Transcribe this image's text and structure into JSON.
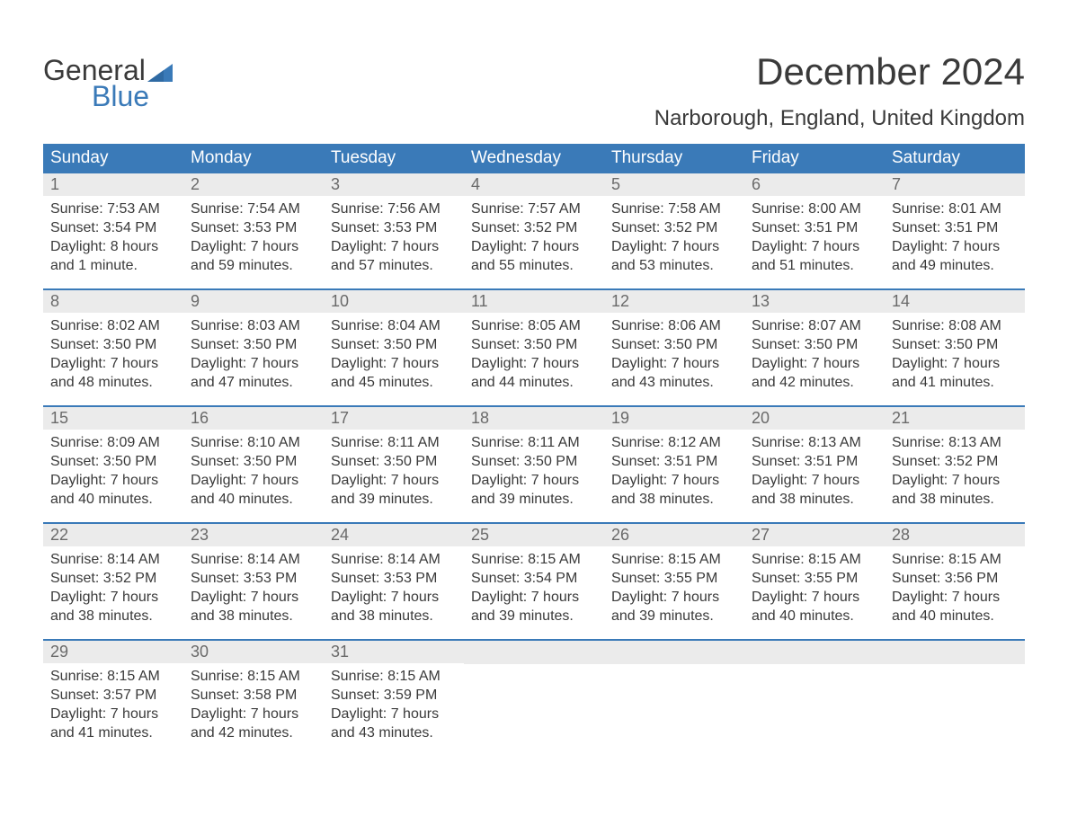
{
  "logo": {
    "line1": "General",
    "line2": "Blue",
    "flag_color": "#3a7ab8"
  },
  "title": "December 2024",
  "location": "Narborough, England, United Kingdom",
  "colors": {
    "header_bg": "#3a7ab8",
    "header_text": "#ffffff",
    "daynum_bg": "#ebebeb",
    "daynum_text": "#6a6a6a",
    "body_text": "#3a3a3a",
    "week_divider": "#3a7ab8",
    "page_bg": "#ffffff"
  },
  "typography": {
    "title_fontsize": 42,
    "location_fontsize": 24,
    "dayhead_fontsize": 19,
    "daynum_fontsize": 18,
    "cell_fontsize": 16
  },
  "day_headers": [
    "Sunday",
    "Monday",
    "Tuesday",
    "Wednesday",
    "Thursday",
    "Friday",
    "Saturday"
  ],
  "weeks": [
    [
      {
        "n": "1",
        "sunrise": "Sunrise: 7:53 AM",
        "sunset": "Sunset: 3:54 PM",
        "d1": "Daylight: 8 hours",
        "d2": "and 1 minute."
      },
      {
        "n": "2",
        "sunrise": "Sunrise: 7:54 AM",
        "sunset": "Sunset: 3:53 PM",
        "d1": "Daylight: 7 hours",
        "d2": "and 59 minutes."
      },
      {
        "n": "3",
        "sunrise": "Sunrise: 7:56 AM",
        "sunset": "Sunset: 3:53 PM",
        "d1": "Daylight: 7 hours",
        "d2": "and 57 minutes."
      },
      {
        "n": "4",
        "sunrise": "Sunrise: 7:57 AM",
        "sunset": "Sunset: 3:52 PM",
        "d1": "Daylight: 7 hours",
        "d2": "and 55 minutes."
      },
      {
        "n": "5",
        "sunrise": "Sunrise: 7:58 AM",
        "sunset": "Sunset: 3:52 PM",
        "d1": "Daylight: 7 hours",
        "d2": "and 53 minutes."
      },
      {
        "n": "6",
        "sunrise": "Sunrise: 8:00 AM",
        "sunset": "Sunset: 3:51 PM",
        "d1": "Daylight: 7 hours",
        "d2": "and 51 minutes."
      },
      {
        "n": "7",
        "sunrise": "Sunrise: 8:01 AM",
        "sunset": "Sunset: 3:51 PM",
        "d1": "Daylight: 7 hours",
        "d2": "and 49 minutes."
      }
    ],
    [
      {
        "n": "8",
        "sunrise": "Sunrise: 8:02 AM",
        "sunset": "Sunset: 3:50 PM",
        "d1": "Daylight: 7 hours",
        "d2": "and 48 minutes."
      },
      {
        "n": "9",
        "sunrise": "Sunrise: 8:03 AM",
        "sunset": "Sunset: 3:50 PM",
        "d1": "Daylight: 7 hours",
        "d2": "and 47 minutes."
      },
      {
        "n": "10",
        "sunrise": "Sunrise: 8:04 AM",
        "sunset": "Sunset: 3:50 PM",
        "d1": "Daylight: 7 hours",
        "d2": "and 45 minutes."
      },
      {
        "n": "11",
        "sunrise": "Sunrise: 8:05 AM",
        "sunset": "Sunset: 3:50 PM",
        "d1": "Daylight: 7 hours",
        "d2": "and 44 minutes."
      },
      {
        "n": "12",
        "sunrise": "Sunrise: 8:06 AM",
        "sunset": "Sunset: 3:50 PM",
        "d1": "Daylight: 7 hours",
        "d2": "and 43 minutes."
      },
      {
        "n": "13",
        "sunrise": "Sunrise: 8:07 AM",
        "sunset": "Sunset: 3:50 PM",
        "d1": "Daylight: 7 hours",
        "d2": "and 42 minutes."
      },
      {
        "n": "14",
        "sunrise": "Sunrise: 8:08 AM",
        "sunset": "Sunset: 3:50 PM",
        "d1": "Daylight: 7 hours",
        "d2": "and 41 minutes."
      }
    ],
    [
      {
        "n": "15",
        "sunrise": "Sunrise: 8:09 AM",
        "sunset": "Sunset: 3:50 PM",
        "d1": "Daylight: 7 hours",
        "d2": "and 40 minutes."
      },
      {
        "n": "16",
        "sunrise": "Sunrise: 8:10 AM",
        "sunset": "Sunset: 3:50 PM",
        "d1": "Daylight: 7 hours",
        "d2": "and 40 minutes."
      },
      {
        "n": "17",
        "sunrise": "Sunrise: 8:11 AM",
        "sunset": "Sunset: 3:50 PM",
        "d1": "Daylight: 7 hours",
        "d2": "and 39 minutes."
      },
      {
        "n": "18",
        "sunrise": "Sunrise: 8:11 AM",
        "sunset": "Sunset: 3:50 PM",
        "d1": "Daylight: 7 hours",
        "d2": "and 39 minutes."
      },
      {
        "n": "19",
        "sunrise": "Sunrise: 8:12 AM",
        "sunset": "Sunset: 3:51 PM",
        "d1": "Daylight: 7 hours",
        "d2": "and 38 minutes."
      },
      {
        "n": "20",
        "sunrise": "Sunrise: 8:13 AM",
        "sunset": "Sunset: 3:51 PM",
        "d1": "Daylight: 7 hours",
        "d2": "and 38 minutes."
      },
      {
        "n": "21",
        "sunrise": "Sunrise: 8:13 AM",
        "sunset": "Sunset: 3:52 PM",
        "d1": "Daylight: 7 hours",
        "d2": "and 38 minutes."
      }
    ],
    [
      {
        "n": "22",
        "sunrise": "Sunrise: 8:14 AM",
        "sunset": "Sunset: 3:52 PM",
        "d1": "Daylight: 7 hours",
        "d2": "and 38 minutes."
      },
      {
        "n": "23",
        "sunrise": "Sunrise: 8:14 AM",
        "sunset": "Sunset: 3:53 PM",
        "d1": "Daylight: 7 hours",
        "d2": "and 38 minutes."
      },
      {
        "n": "24",
        "sunrise": "Sunrise: 8:14 AM",
        "sunset": "Sunset: 3:53 PM",
        "d1": "Daylight: 7 hours",
        "d2": "and 38 minutes."
      },
      {
        "n": "25",
        "sunrise": "Sunrise: 8:15 AM",
        "sunset": "Sunset: 3:54 PM",
        "d1": "Daylight: 7 hours",
        "d2": "and 39 minutes."
      },
      {
        "n": "26",
        "sunrise": "Sunrise: 8:15 AM",
        "sunset": "Sunset: 3:55 PM",
        "d1": "Daylight: 7 hours",
        "d2": "and 39 minutes."
      },
      {
        "n": "27",
        "sunrise": "Sunrise: 8:15 AM",
        "sunset": "Sunset: 3:55 PM",
        "d1": "Daylight: 7 hours",
        "d2": "and 40 minutes."
      },
      {
        "n": "28",
        "sunrise": "Sunrise: 8:15 AM",
        "sunset": "Sunset: 3:56 PM",
        "d1": "Daylight: 7 hours",
        "d2": "and 40 minutes."
      }
    ],
    [
      {
        "n": "29",
        "sunrise": "Sunrise: 8:15 AM",
        "sunset": "Sunset: 3:57 PM",
        "d1": "Daylight: 7 hours",
        "d2": "and 41 minutes."
      },
      {
        "n": "30",
        "sunrise": "Sunrise: 8:15 AM",
        "sunset": "Sunset: 3:58 PM",
        "d1": "Daylight: 7 hours",
        "d2": "and 42 minutes."
      },
      {
        "n": "31",
        "sunrise": "Sunrise: 8:15 AM",
        "sunset": "Sunset: 3:59 PM",
        "d1": "Daylight: 7 hours",
        "d2": "and 43 minutes."
      },
      null,
      null,
      null,
      null
    ]
  ]
}
